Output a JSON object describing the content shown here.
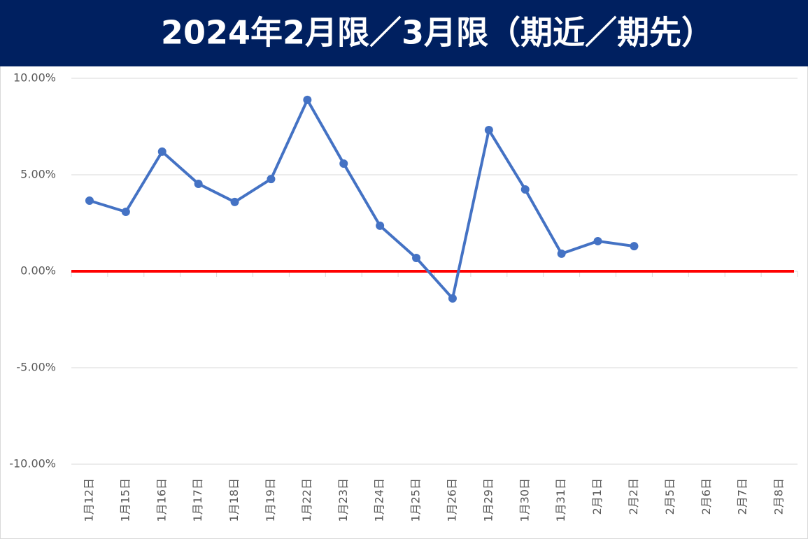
{
  "chart_data": {
    "type": "line",
    "title": "2024年2月限／3月限（期近／期先）",
    "categories": [
      "1月12日",
      "1月15日",
      "1月16日",
      "1月17日",
      "1月18日",
      "1月19日",
      "1月22日",
      "1月23日",
      "1月24日",
      "1月25日",
      "1月26日",
      "1月29日",
      "1月30日",
      "1月31日",
      "2月1日",
      "2月2日",
      "2月5日",
      "2月6日",
      "2月7日",
      "2月8日"
    ],
    "series": [
      {
        "color": "#4472c4",
        "values": [
          3.66,
          3.08,
          6.2,
          4.53,
          3.59,
          4.78,
          8.88,
          5.58,
          2.36,
          0.69,
          -1.41,
          7.32,
          4.24,
          0.91,
          1.56,
          1.3,
          null,
          null,
          null,
          null
        ]
      }
    ],
    "ylim": [
      -10,
      10
    ],
    "yticks": [
      {
        "value": -10,
        "label": "-10.00%"
      },
      {
        "value": -5,
        "label": "-5.00%"
      },
      {
        "value": 0,
        "label": "0.00%"
      },
      {
        "value": 5,
        "label": "5.00%"
      },
      {
        "value": 10,
        "label": "10.00%"
      }
    ],
    "grid": true,
    "axis_line_color": "#ff0000",
    "title_background": "#002060"
  }
}
